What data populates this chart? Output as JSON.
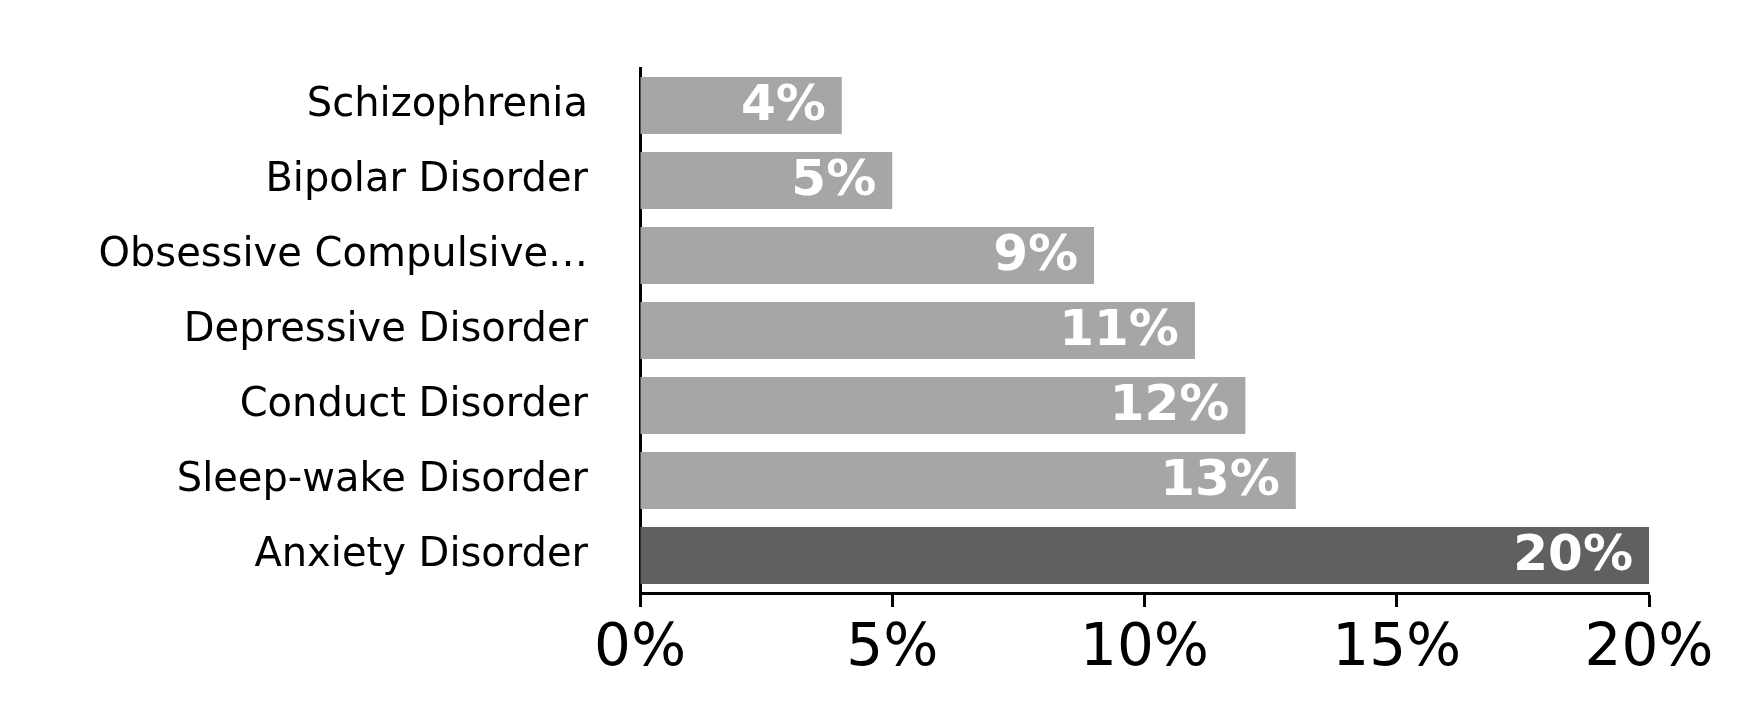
{
  "chart_data": {
    "type": "bar",
    "orientation": "horizontal",
    "categories": [
      "Schizophrenia",
      "Bipolar Disorder",
      "Obsessive Compulsive…",
      "Depressive Disorder",
      "Conduct Disorder",
      "Sleep-wake Disorder",
      "Anxiety Disorder"
    ],
    "values": [
      4,
      5,
      9,
      11,
      12,
      13,
      20
    ],
    "colors": [
      "#a6a6a6",
      "#a6a6a6",
      "#a6a6a6",
      "#a6a6a6",
      "#a6a6a6",
      "#a6a6a6",
      "#606060"
    ],
    "xlim": [
      0,
      20
    ],
    "xticks": [
      {
        "value": 0,
        "label": "0%"
      },
      {
        "value": 5,
        "label": "5%"
      },
      {
        "value": 10,
        "label": "10%"
      },
      {
        "value": 15,
        "label": "15%"
      },
      {
        "value": 20,
        "label": "20%"
      }
    ],
    "value_labels": [
      "4%",
      "5%",
      "9%",
      "11%",
      "12%",
      "13%",
      "20%"
    ],
    "grid": false,
    "legend": false
  }
}
